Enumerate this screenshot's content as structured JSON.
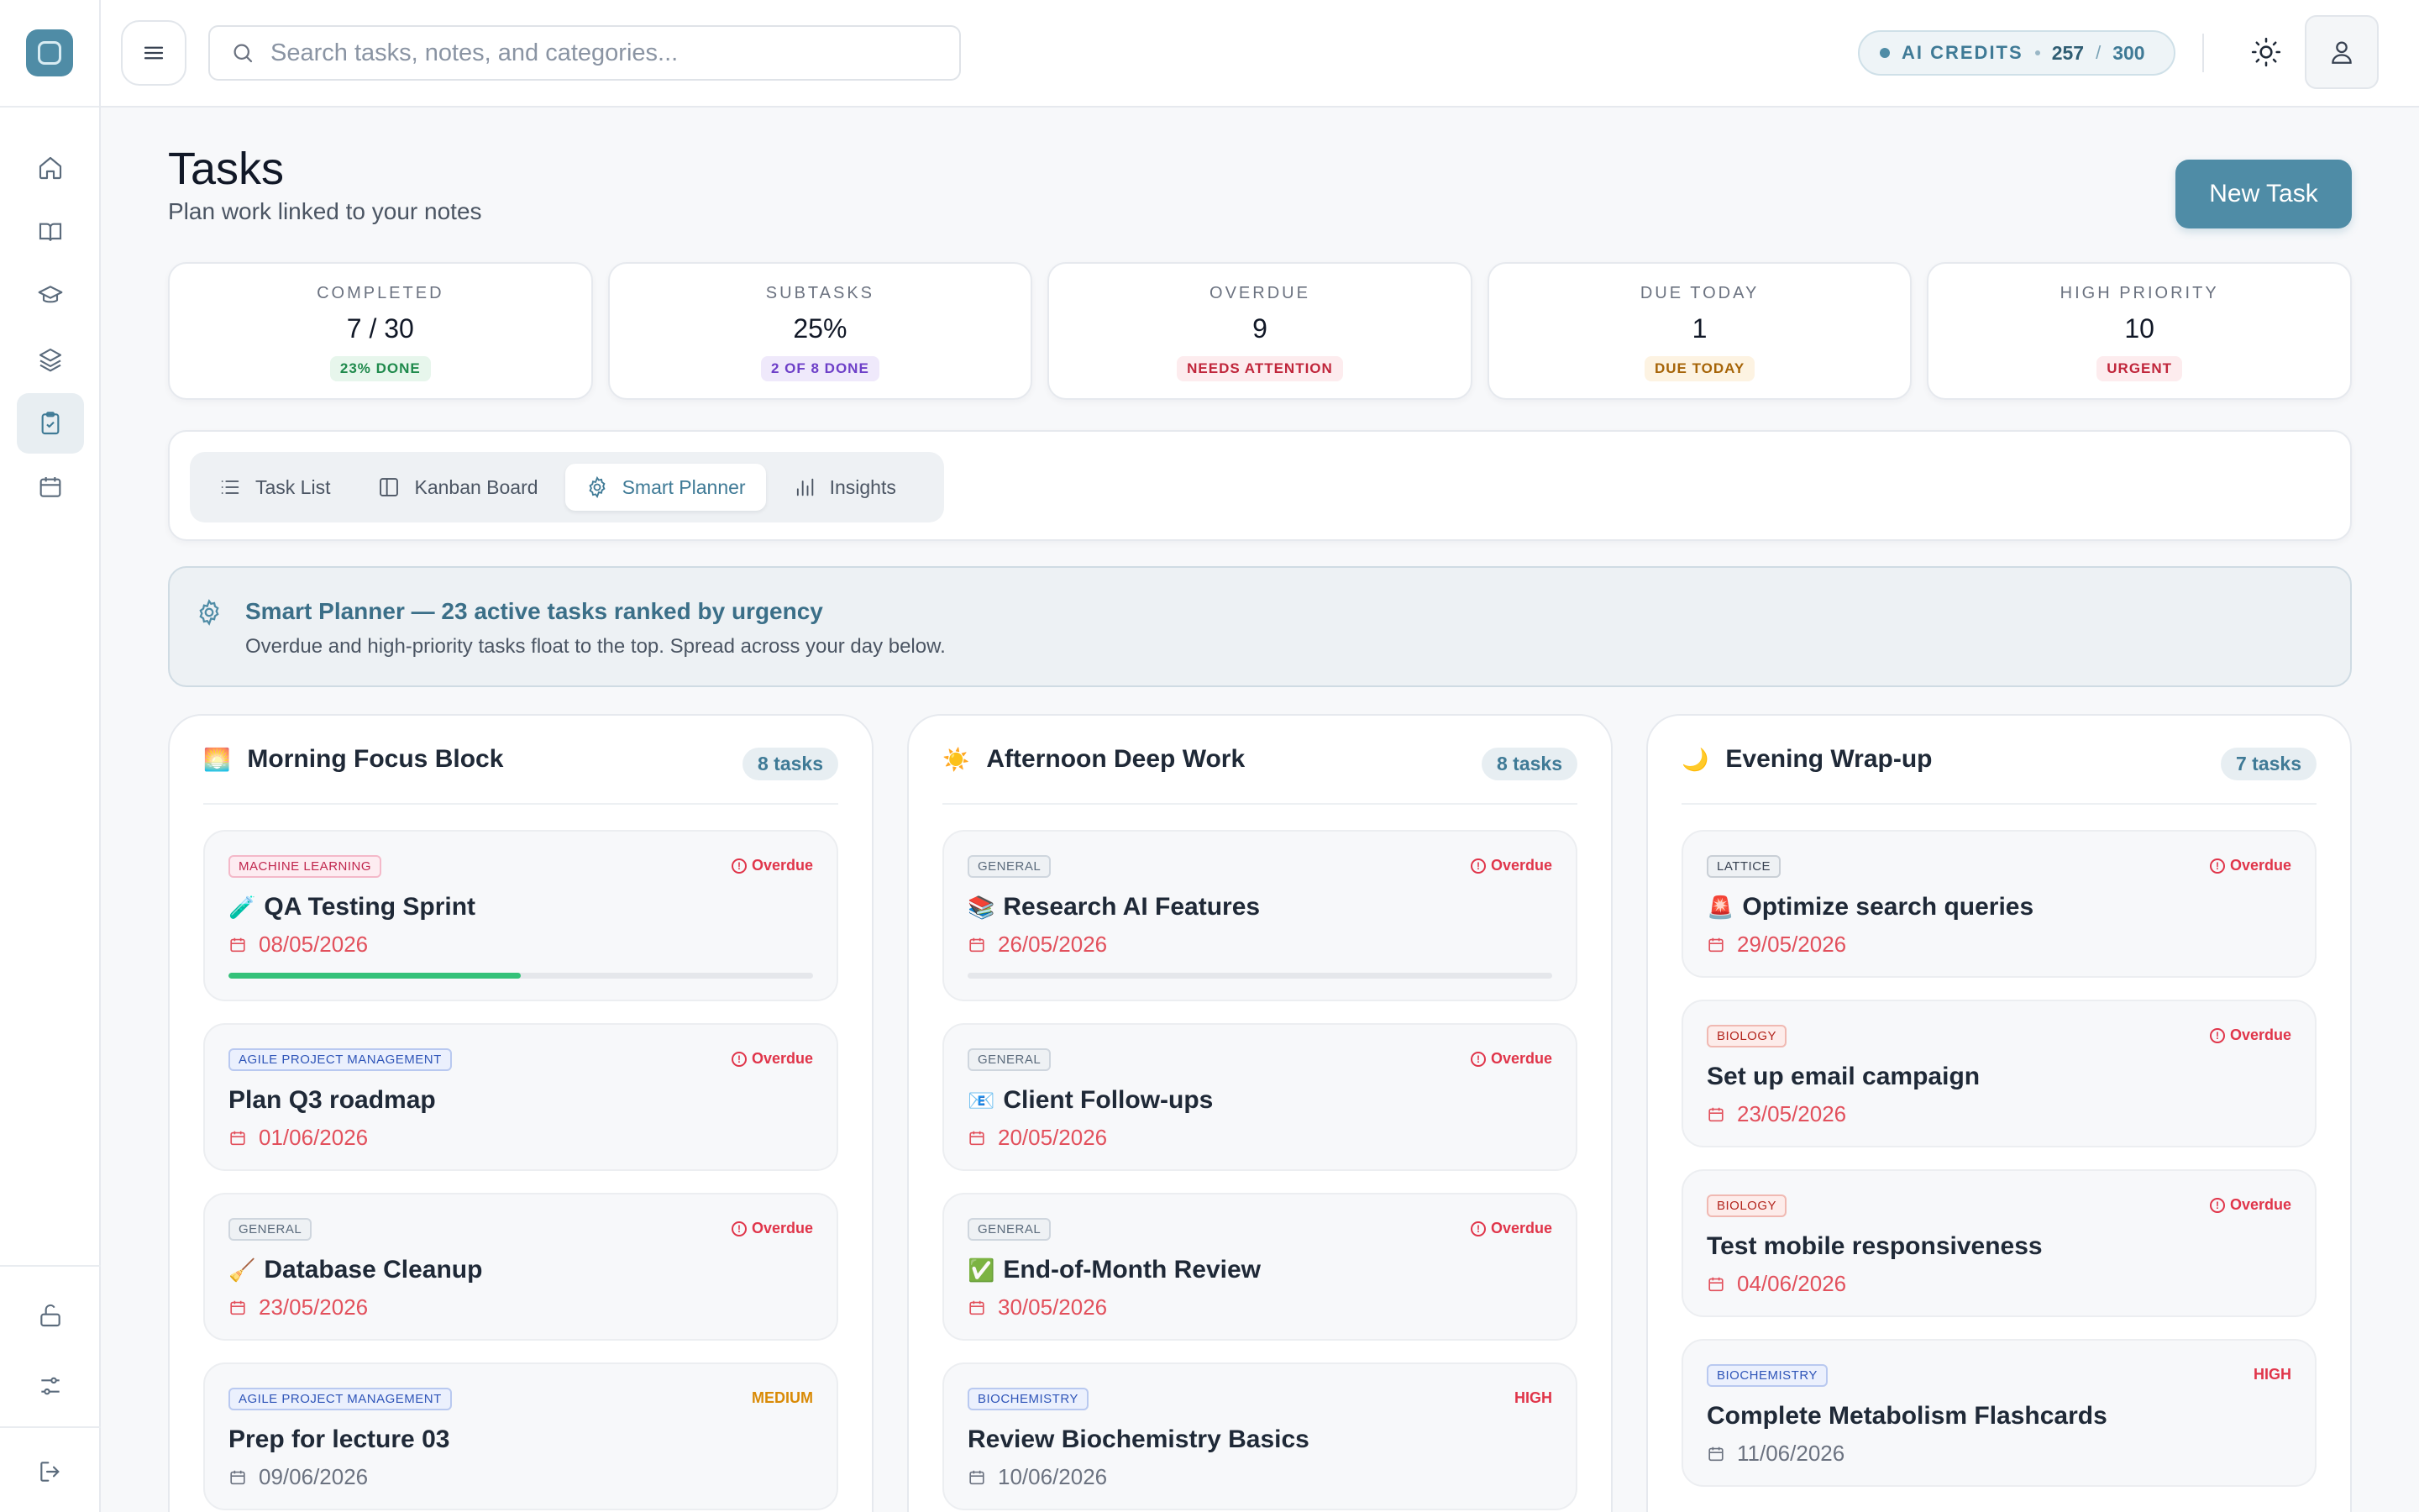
{
  "topbar": {
    "search_placeholder": "Search tasks, notes, and categories...",
    "credits": {
      "label": "AI CREDITS",
      "used": "257",
      "total": "300"
    }
  },
  "page": {
    "title": "Tasks",
    "subtitle": "Plan work linked to your notes",
    "new_task_label": "New Task"
  },
  "stats": [
    {
      "label": "COMPLETED",
      "value": "7 / 30",
      "badge": "23% DONE",
      "badge_color": "#1f8a4c",
      "badge_bg": "#e7f6ec"
    },
    {
      "label": "SUBTASKS",
      "value": "25%",
      "badge": "2 OF 8 DONE",
      "badge_color": "#6d3fc8",
      "badge_bg": "#efe9fb"
    },
    {
      "label": "OVERDUE",
      "value": "9",
      "badge": "NEEDS ATTENTION",
      "badge_color": "#c0263b",
      "badge_bg": "#fdecee"
    },
    {
      "label": "DUE TODAY",
      "value": "1",
      "badge": "DUE TODAY",
      "badge_color": "#a66408",
      "badge_bg": "#fdf3e2"
    },
    {
      "label": "HIGH PRIORITY",
      "value": "10",
      "badge": "URGENT",
      "badge_color": "#c0263b",
      "badge_bg": "#fdecee"
    }
  ],
  "tabs": [
    {
      "label": "Task List",
      "icon": "list-icon"
    },
    {
      "label": "Kanban Board",
      "icon": "kanban-icon"
    },
    {
      "label": "Smart Planner",
      "icon": "gear-icon"
    },
    {
      "label": "Insights",
      "icon": "bar-chart-icon"
    }
  ],
  "banner": {
    "title": "Smart Planner — 23 active tasks ranked by urgency",
    "subtitle": "Overdue and high-priority tasks float to the top. Spread across your day below."
  },
  "columns": [
    {
      "emoji": "🌅",
      "title": "Morning Focus Block",
      "count": "8 tasks",
      "tasks": [
        {
          "category": "MACHINE LEARNING",
          "flag": "Overdue",
          "emoji": "🧪",
          "title": "QA Testing Sprint",
          "date": "08/05/2026",
          "progress": 0.5
        },
        {
          "category": "AGILE PROJECT MANAGEMENT",
          "flag": "Overdue",
          "emoji": "",
          "title": "Plan Q3 roadmap",
          "date": "01/06/2026"
        },
        {
          "category": "GENERAL",
          "flag": "Overdue",
          "emoji": "🧹",
          "title": "Database Cleanup",
          "date": "23/05/2026"
        },
        {
          "category": "AGILE PROJECT MANAGEMENT",
          "flag": "MEDIUM",
          "emoji": "",
          "title": "Prep for lecture 03",
          "date": "09/06/2026"
        }
      ]
    },
    {
      "emoji": "☀️",
      "title": "Afternoon Deep Work",
      "count": "8 tasks",
      "tasks": [
        {
          "category": "GENERAL",
          "flag": "Overdue",
          "emoji": "📚",
          "title": "Research AI Features",
          "date": "26/05/2026",
          "progress": 0
        },
        {
          "category": "GENERAL",
          "flag": "Overdue",
          "emoji": "📧",
          "title": "Client Follow-ups",
          "date": "20/05/2026"
        },
        {
          "category": "GENERAL",
          "flag": "Overdue",
          "emoji": "✅",
          "title": "End-of-Month Review",
          "date": "30/05/2026"
        },
        {
          "category": "BIOCHEMISTRY",
          "flag": "HIGH",
          "emoji": "",
          "title": "Review Biochemistry Basics",
          "date": "10/06/2026"
        }
      ]
    },
    {
      "emoji": "🌙",
      "title": "Evening Wrap-up",
      "count": "7 tasks",
      "tasks": [
        {
          "category": "LATTICE",
          "flag": "Overdue",
          "emoji": "🚨",
          "title": "Optimize search queries",
          "date": "29/05/2026"
        },
        {
          "category": "BIOLOGY",
          "flag": "Overdue",
          "emoji": "",
          "title": "Set up email campaign",
          "date": "23/05/2026"
        },
        {
          "category": "BIOLOGY",
          "flag": "Overdue",
          "emoji": "",
          "title": "Test mobile responsiveness",
          "date": "04/06/2026"
        },
        {
          "category": "BIOCHEMISTRY",
          "flag": "HIGH",
          "emoji": "",
          "title": "Complete Metabolism Flashcards",
          "date": "11/06/2026"
        }
      ]
    }
  ],
  "category_styles": {
    "MACHINE LEARNING": {
      "color": "#c0264d",
      "bg": "#fdecf1",
      "border": "#f4b9c9"
    },
    "AGILE PROJECT MANAGEMENT": {
      "color": "#2f55b8",
      "bg": "#ebf0fd",
      "border": "#b9c9f0"
    },
    "GENERAL": {
      "color": "#5b6b7c",
      "bg": "#eef1f4",
      "border": "#cfd6de"
    },
    "BIOCHEMISTRY": {
      "color": "#2f55b8",
      "bg": "#ebf0fd",
      "border": "#b9c9f0"
    },
    "LATTICE": {
      "color": "#374151",
      "bg": "#eef1f4",
      "border": "#c9cfd6"
    },
    "BIOLOGY": {
      "color": "#b3261e",
      "bg": "#fdecea",
      "border": "#f0b9b2"
    }
  },
  "flag_colors": {
    "Overdue": "#e0354a",
    "MEDIUM": "#d98a06",
    "HIGH": "#e0354a"
  }
}
